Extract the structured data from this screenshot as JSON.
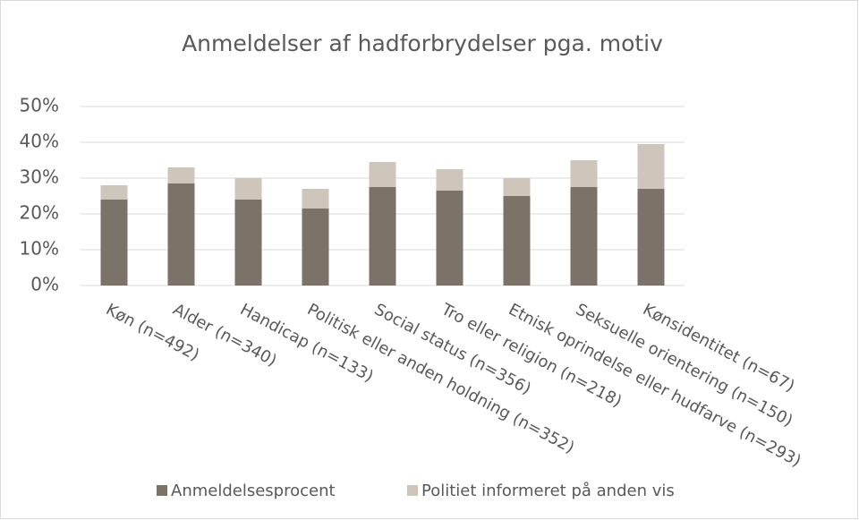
{
  "chart_data": {
    "type": "stacked_bar",
    "title": "Anmeldelser af hadforbrydelser pga. motiv",
    "categories": [
      "Køn (n=492)",
      "Alder (n=340)",
      "Handicap (n=133)",
      "Politisk eller anden holdning (n=352)",
      "Social status (n=356)",
      "Tro eller religion (n=218)",
      "Etnisk oprindelse eller hudfarve (n=293)",
      "Seksuelle orientering (n=150)",
      "Kønsidentitet (n=67)"
    ],
    "series": [
      {
        "name": "Anmeldelsesprocent",
        "color": "#7c7368",
        "values": [
          24,
          28.5,
          24,
          21.5,
          27.5,
          26.5,
          25,
          27.5,
          27
        ]
      },
      {
        "name": "Politiet informeret på anden vis",
        "color": "#cfc6bb",
        "values": [
          4,
          4.5,
          6,
          5.5,
          7,
          6,
          5,
          7.5,
          12.5
        ]
      }
    ],
    "ylim": [
      0,
      50
    ],
    "yticks": [
      {
        "value": 0,
        "label": "0%"
      },
      {
        "value": 10,
        "label": "10%"
      },
      {
        "value": 20,
        "label": "20%"
      },
      {
        "value": 30,
        "label": "30%"
      },
      {
        "value": 40,
        "label": "40%"
      },
      {
        "value": 50,
        "label": "50%"
      }
    ],
    "grid": true,
    "legend": "bottom"
  }
}
